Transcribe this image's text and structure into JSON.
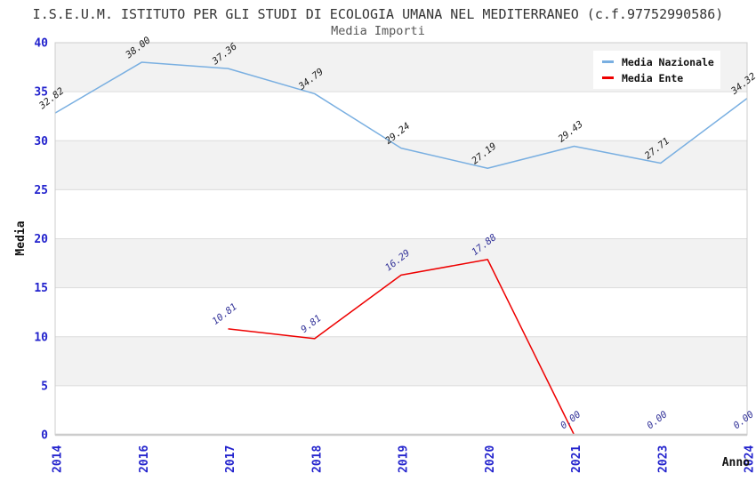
{
  "header": {
    "title": "I.S.E.U.M. ISTITUTO PER GLI STUDI DI ECOLOGIA UMANA NEL MEDITERRANEO (c.f.97752990586)",
    "subtitle": "Media Importi"
  },
  "chart_data": {
    "type": "line",
    "x_categories": [
      "2014",
      "2016",
      "2017",
      "2018",
      "2019",
      "2020",
      "2021",
      "2023",
      "2024"
    ],
    "series": [
      {
        "name": "Media Nazionale",
        "color": "#79afe1",
        "label_color": "#1a1a1a",
        "values": [
          32.82,
          38.0,
          37.36,
          34.79,
          29.24,
          27.19,
          29.43,
          27.71,
          34.32
        ]
      },
      {
        "name": "Media Ente",
        "color": "#ee0000",
        "label_color": "#333399",
        "values": [
          null,
          null,
          10.81,
          9.81,
          16.29,
          17.88,
          0.0,
          0.0,
          0.0
        ]
      }
    ],
    "xlabel": "Anno",
    "ylabel": "Media",
    "ylim": [
      0,
      40
    ],
    "ytick_step": 5,
    "legend_position": "top-right",
    "grid": "horizontal-bands",
    "band_colors": [
      "#ffffff",
      "#f2f2f2"
    ],
    "gridline_color": "#dcdcdc",
    "border_color": "#cccccc",
    "tick_color": "#2323cd"
  }
}
